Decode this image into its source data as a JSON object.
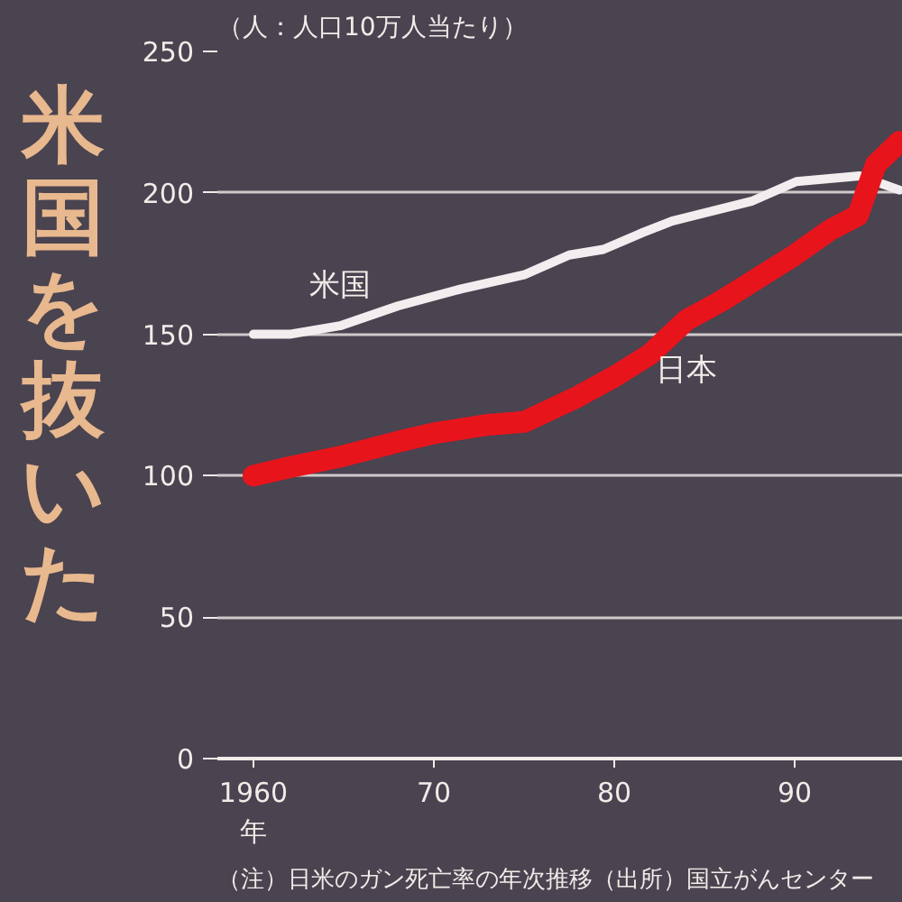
{
  "chart_data": {
    "type": "line",
    "title": "米国を抜いた",
    "ylabel": "（人：人口10万人当たり）",
    "annotations": [
      "（注）日米のガン死亡率の年次推移（出所）国立がんセンター"
    ],
    "series": [
      {
        "name": "米国",
        "color": "#f2eef0",
        "x": [
          1960,
          1962,
          1964.8,
          1968,
          1971.5,
          1975,
          1977.5,
          1979.4,
          1981.6,
          1983.2,
          1987.6,
          1990.1,
          1993.6,
          1995.8
        ],
        "values": [
          150,
          150,
          153,
          160,
          166,
          171,
          178,
          180,
          186,
          190,
          197,
          204,
          206,
          201
        ]
      },
      {
        "name": "日本",
        "color": "#e8141c",
        "x": [
          1960,
          1962,
          1965,
          1968,
          1970,
          1973,
          1975,
          1978,
          1980,
          1982,
          1984,
          1986,
          1988,
          1990,
          1992,
          1993.5,
          1994.5,
          1995.8
        ],
        "values": [
          100,
          103,
          107,
          112,
          115,
          118,
          119,
          128,
          135,
          143,
          155,
          162,
          170,
          178,
          187,
          192,
          210,
          218
        ]
      }
    ],
    "xlim": [
      1958,
      1996
    ],
    "xticks": [
      {
        "value": 1960,
        "label": "1960\n年"
      },
      {
        "value": 1970,
        "label": "70"
      },
      {
        "value": 1980,
        "label": "80"
      },
      {
        "value": 1990,
        "label": "90"
      }
    ],
    "ylim": [
      0,
      250
    ],
    "yticks": [
      0,
      50,
      100,
      150,
      200,
      250
    ],
    "grid": "y",
    "legend": false
  }
}
